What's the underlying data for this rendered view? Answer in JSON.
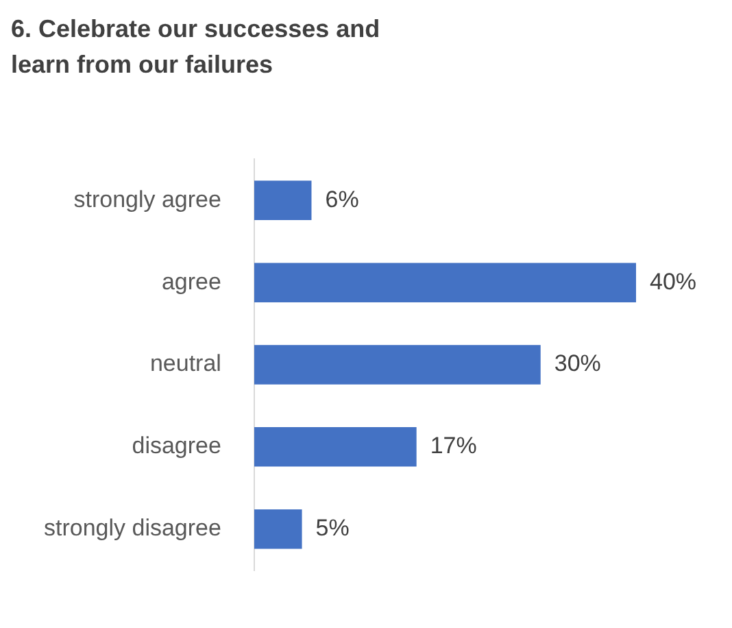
{
  "chart_data": {
    "type": "bar",
    "orientation": "horizontal",
    "title": "6. Celebrate our successes and learn from our failures",
    "categories": [
      "strongly agree",
      "agree",
      "neutral",
      "disagree",
      "strongly disagree"
    ],
    "values": [
      6,
      40,
      30,
      17,
      5
    ],
    "value_labels": [
      "6%",
      "40%",
      "30%",
      "17%",
      "5%"
    ],
    "color": "#4472c4",
    "grid": false,
    "legend": false
  }
}
